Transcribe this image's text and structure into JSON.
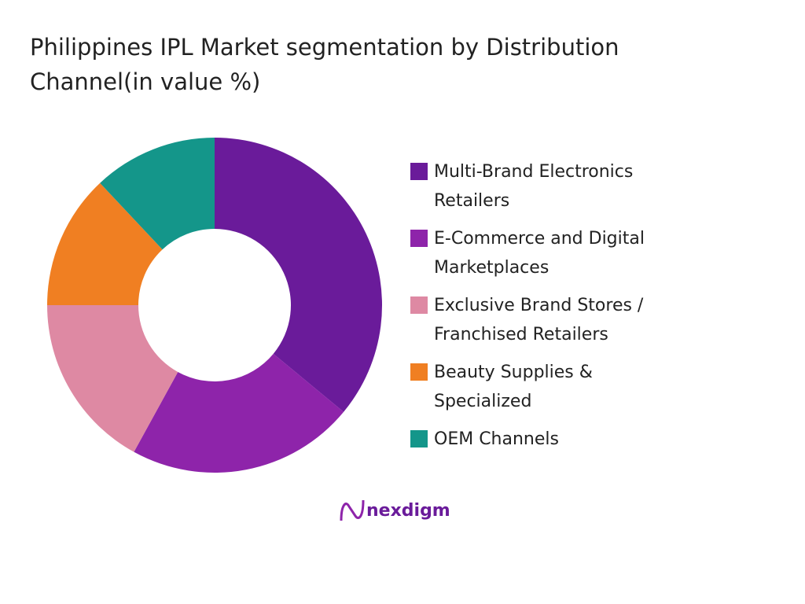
{
  "chart_data": {
    "type": "donut",
    "title": "Philippines IPL Market segmentation by Distribution Channel(in value %)",
    "categories": [
      "Multi-Brand Electronics Retailers",
      "E-Commerce and Digital Marketplaces",
      "Exclusive Brand Stores / Franchised Retailers",
      "Beauty Supplies & Specialized",
      "OEM Channels"
    ],
    "values": [
      36,
      22,
      17,
      13,
      12
    ],
    "colors": [
      "#6a1b9a",
      "#8e24aa",
      "#de89a3",
      "#f07f22",
      "#14968a"
    ],
    "legend": "right"
  },
  "brand": "nexdigm"
}
